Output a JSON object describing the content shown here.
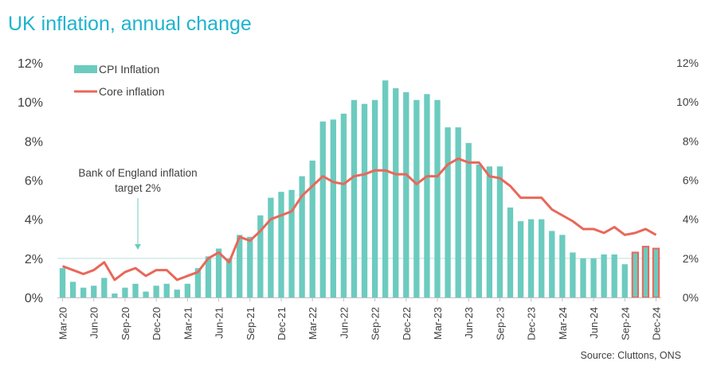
{
  "title": "UK inflation, annual change",
  "source": "Source: Cluttons, ONS",
  "colors": {
    "title": "#1db3cf",
    "cpi_bar": "#6ccbbf",
    "cpi_bar_highlight": "#e9675a",
    "core_line": "#e9675a",
    "target_line": "#b9e3dc",
    "annotation": "#6ccbbf"
  },
  "chart_data": {
    "type": "bar",
    "title": "UK inflation, annual change",
    "xlabel": "",
    "ylabel": "",
    "ylim": [
      0,
      12
    ],
    "y_ticks": [
      "0%",
      "2%",
      "4%",
      "6%",
      "8%",
      "10%",
      "12%"
    ],
    "y_ticks_right": [
      "0%",
      "2%",
      "4%",
      "6%",
      "8%",
      "10%",
      "12%"
    ],
    "x_tick_labels": [
      "Mar-20",
      "Jun-20",
      "Sep-20",
      "Dec-20",
      "Mar-21",
      "Jun-21",
      "Sep-21",
      "Dec-21",
      "Mar-22",
      "Jun-22",
      "Sep-22",
      "Dec-22",
      "Mar-23",
      "Jun-23",
      "Sep-23",
      "Dec-23",
      "Mar-24",
      "Jun-24",
      "Sep-24",
      "Dec-24"
    ],
    "legend": [
      "CPI Inflation",
      "Core inflation"
    ],
    "legend_position": "top-left",
    "grid": false,
    "categories": [
      "Mar-20",
      "Apr-20",
      "May-20",
      "Jun-20",
      "Jul-20",
      "Aug-20",
      "Sep-20",
      "Oct-20",
      "Nov-20",
      "Dec-20",
      "Jan-21",
      "Feb-21",
      "Mar-21",
      "Apr-21",
      "May-21",
      "Jun-21",
      "Jul-21",
      "Aug-21",
      "Sep-21",
      "Oct-21",
      "Nov-21",
      "Dec-21",
      "Jan-22",
      "Feb-22",
      "Mar-22",
      "Apr-22",
      "May-22",
      "Jun-22",
      "Jul-22",
      "Aug-22",
      "Sep-22",
      "Oct-22",
      "Nov-22",
      "Dec-22",
      "Jan-23",
      "Feb-23",
      "Mar-23",
      "Apr-23",
      "May-23",
      "Jun-23",
      "Jul-23",
      "Aug-23",
      "Sep-23",
      "Oct-23",
      "Nov-23",
      "Dec-23",
      "Jan-24",
      "Feb-24",
      "Mar-24",
      "Apr-24",
      "May-24",
      "Jun-24",
      "Jul-24",
      "Aug-24",
      "Sep-24",
      "Oct-24",
      "Nov-24",
      "Dec-24"
    ],
    "series": [
      {
        "name": "CPI Inflation",
        "kind": "bar",
        "values": [
          1.5,
          0.8,
          0.5,
          0.6,
          1.0,
          0.2,
          0.5,
          0.7,
          0.3,
          0.6,
          0.7,
          0.4,
          0.7,
          1.5,
          2.1,
          2.5,
          2.0,
          3.2,
          3.1,
          4.2,
          5.1,
          5.4,
          5.5,
          6.2,
          7.0,
          9.0,
          9.1,
          9.4,
          10.1,
          9.9,
          10.1,
          11.1,
          10.7,
          10.5,
          10.1,
          10.4,
          10.1,
          8.7,
          8.7,
          7.9,
          6.8,
          6.7,
          6.7,
          4.6,
          3.9,
          4.0,
          4.0,
          3.4,
          3.2,
          2.3,
          2.0,
          2.0,
          2.2,
          2.2,
          1.7,
          2.3,
          2.6,
          2.5
        ],
        "highlighted_last": 3
      },
      {
        "name": "Core inflation",
        "kind": "line",
        "values": [
          1.6,
          1.4,
          1.2,
          1.4,
          1.8,
          0.9,
          1.3,
          1.5,
          1.1,
          1.4,
          1.4,
          0.9,
          1.1,
          1.3,
          2.0,
          2.3,
          1.8,
          3.1,
          2.9,
          3.4,
          4.0,
          4.2,
          4.4,
          5.2,
          5.7,
          6.2,
          5.9,
          5.8,
          6.2,
          6.3,
          6.5,
          6.5,
          6.3,
          6.3,
          5.8,
          6.2,
          6.2,
          6.8,
          7.1,
          6.9,
          6.9,
          6.2,
          6.1,
          5.7,
          5.1,
          5.1,
          5.1,
          4.5,
          4.2,
          3.9,
          3.5,
          3.5,
          3.3,
          3.6,
          3.2,
          3.3,
          3.5,
          3.2
        ]
      }
    ],
    "annotations": [
      {
        "text_line1": "Bank of England inflation",
        "text_line2": "target 2%",
        "reference_value": 2
      }
    ]
  }
}
